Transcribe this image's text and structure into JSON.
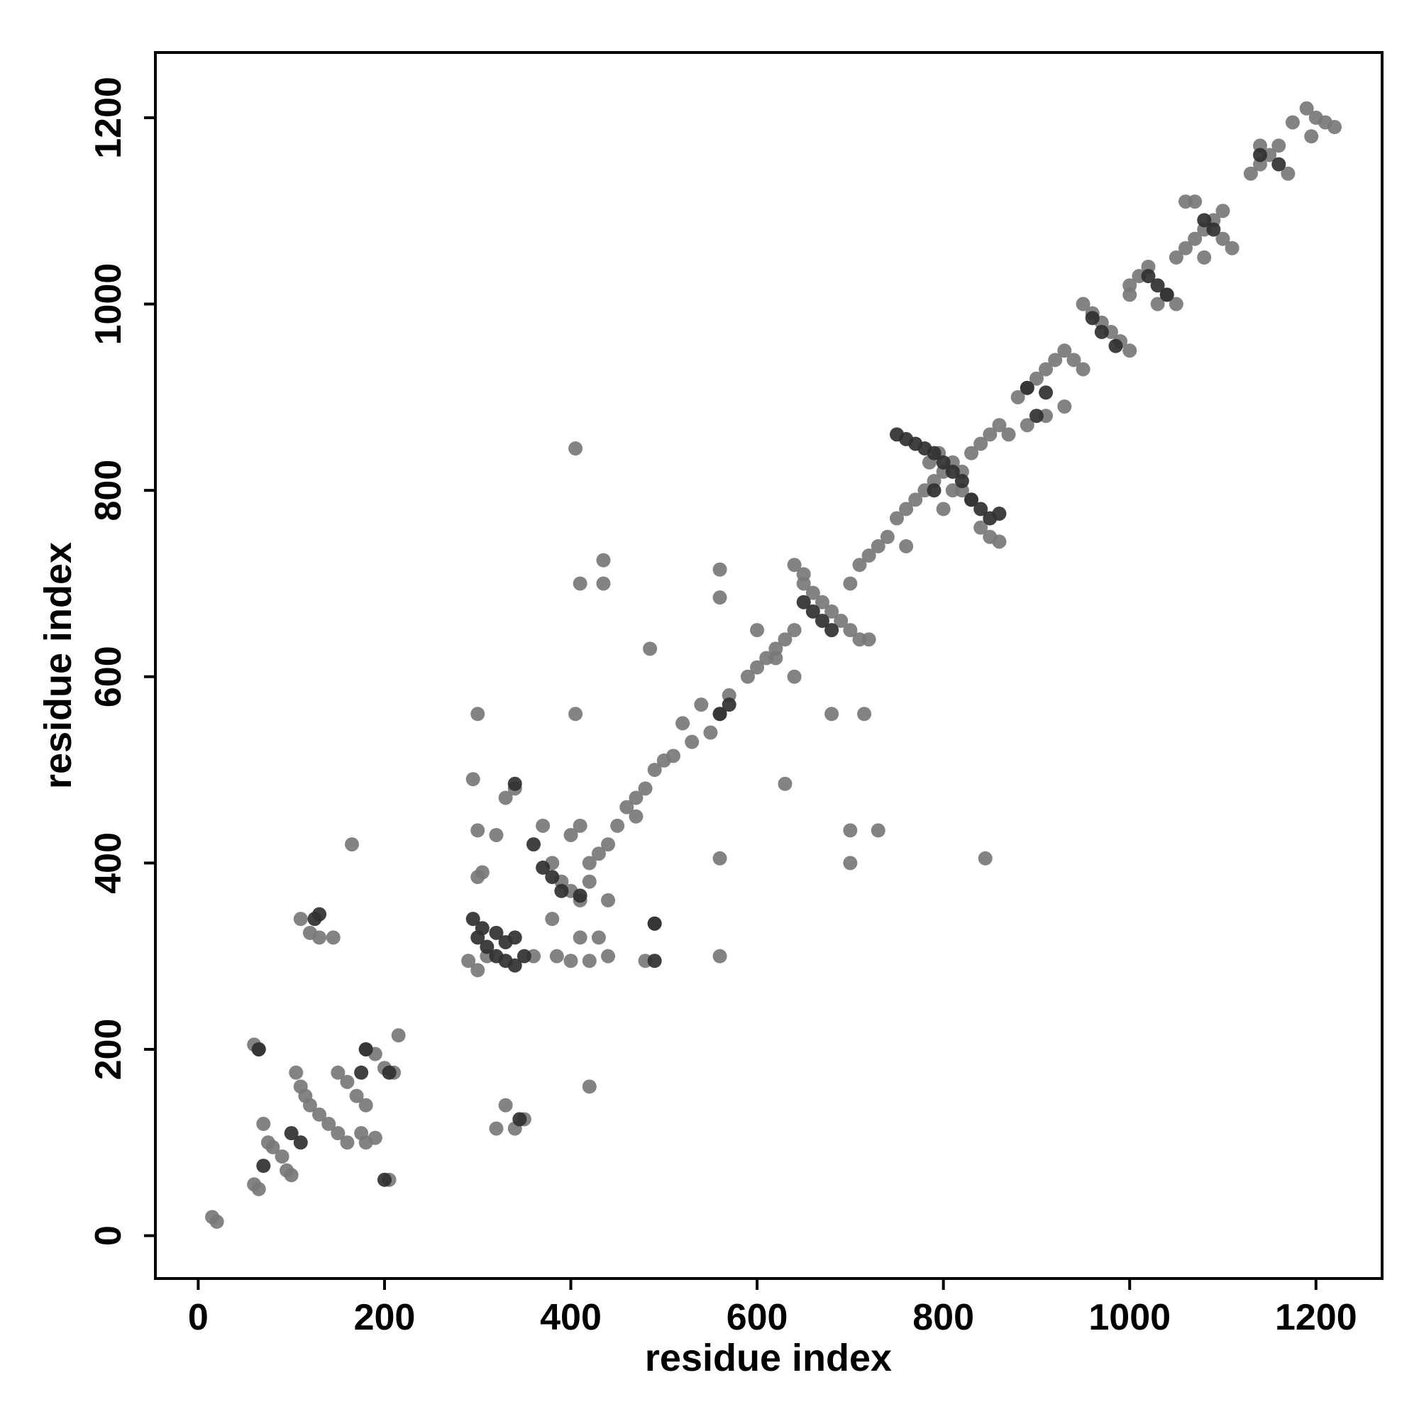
{
  "chart_data": {
    "type": "scatter",
    "x_label": "residue index",
    "y_label": "residue index",
    "xlim": [
      -46,
      1271
    ],
    "ylim": [
      -46,
      1270
    ],
    "xticks": [
      0,
      200,
      400,
      600,
      800,
      1000,
      1200
    ],
    "yticks": [
      0,
      200,
      400,
      600,
      800,
      1000,
      1200
    ],
    "series": [
      {
        "color": "#787878",
        "x": [
          15,
          20,
          60,
          65,
          60,
          65,
          70,
          75,
          80,
          90,
          95,
          100,
          105,
          110,
          115,
          120,
          130,
          140,
          150,
          160,
          110,
          120,
          130,
          145,
          165,
          150,
          160,
          170,
          180,
          175,
          180,
          190,
          200,
          210,
          215,
          205,
          180,
          190,
          290,
          300,
          300,
          295,
          300,
          300,
          305,
          320,
          330,
          320,
          340,
          350,
          310,
          330,
          340,
          360,
          370,
          380,
          390,
          400,
          410,
          420,
          430,
          440,
          400,
          410,
          420,
          440,
          380,
          385,
          400,
          410,
          420,
          430,
          440,
          450,
          460,
          470,
          480,
          470,
          490,
          500,
          510,
          405,
          410,
          435,
          435,
          405,
          485,
          420,
          480,
          490,
          560,
          560,
          520,
          540,
          550,
          530,
          560,
          570,
          590,
          600,
          610,
          620,
          630,
          640,
          600,
          620,
          640,
          630,
          650,
          660,
          670,
          680,
          690,
          700,
          710,
          720,
          640,
          650,
          680,
          700,
          710,
          720,
          730,
          740,
          700,
          700,
          715,
          730,
          560,
          560,
          750,
          760,
          770,
          780,
          790,
          800,
          810,
          820,
          830,
          840,
          850,
          860,
          800,
          810,
          820,
          830,
          840,
          850,
          860,
          870,
          845,
          760,
          785,
          795,
          880,
          890,
          900,
          910,
          920,
          930,
          890,
          910,
          930,
          950,
          960,
          970,
          980,
          990,
          1000,
          940,
          950,
          1000,
          1010,
          1020,
          1030,
          1040,
          1050,
          1000,
          1050,
          1060,
          1070,
          1080,
          1090,
          1100,
          1060,
          1070,
          1080,
          1100,
          1110,
          1130,
          1140,
          1150,
          1160,
          1170,
          1140,
          1175,
          1190,
          1200,
          1210,
          1220,
          1195
        ],
        "y": [
          20,
          15,
          55,
          50,
          205,
          200,
          120,
          100,
          95,
          85,
          70,
          65,
          175,
          160,
          150,
          140,
          130,
          120,
          110,
          100,
          340,
          325,
          320,
          320,
          420,
          175,
          165,
          150,
          140,
          110,
          100,
          105,
          180,
          175,
          215,
          60,
          200,
          195,
          295,
          285,
          560,
          490,
          435,
          385,
          390,
          430,
          140,
          115,
          115,
          125,
          300,
          470,
          480,
          300,
          440,
          400,
          380,
          370,
          360,
          400,
          410,
          420,
          430,
          440,
          380,
          360,
          340,
          300,
          295,
          320,
          295,
          320,
          300,
          440,
          460,
          470,
          480,
          450,
          500,
          510,
          515,
          560,
          700,
          700,
          725,
          845,
          630,
          160,
          295,
          335,
          300,
          405,
          550,
          570,
          540,
          530,
          560,
          580,
          600,
          610,
          620,
          630,
          640,
          650,
          650,
          620,
          600,
          485,
          700,
          690,
          680,
          670,
          660,
          650,
          640,
          640,
          720,
          710,
          560,
          700,
          720,
          730,
          740,
          750,
          400,
          435,
          560,
          435,
          715,
          685,
          770,
          780,
          790,
          800,
          810,
          820,
          830,
          800,
          790,
          760,
          750,
          745,
          780,
          800,
          820,
          840,
          850,
          860,
          870,
          860,
          405,
          740,
          830,
          840,
          900,
          910,
          920,
          930,
          940,
          950,
          870,
          880,
          890,
          1000,
          990,
          980,
          970,
          960,
          950,
          940,
          930,
          1020,
          1030,
          1040,
          1000,
          1010,
          1000,
          1010,
          1050,
          1060,
          1070,
          1080,
          1090,
          1100,
          1110,
          1110,
          1050,
          1070,
          1060,
          1140,
          1150,
          1160,
          1170,
          1140,
          1170,
          1195,
          1210,
          1200,
          1195,
          1190,
          1180
        ]
      },
      {
        "color": "#303030",
        "x": [
          65,
          70,
          100,
          110,
          130,
          125,
          175,
          180,
          200,
          205,
          295,
          300,
          310,
          320,
          330,
          340,
          305,
          320,
          330,
          340,
          345,
          340,
          360,
          370,
          380,
          390,
          410,
          490,
          490,
          350,
          570,
          560,
          650,
          660,
          670,
          680,
          750,
          760,
          770,
          780,
          790,
          800,
          810,
          820,
          830,
          840,
          850,
          860,
          790,
          890,
          900,
          910,
          960,
          970,
          985,
          1020,
          1030,
          1040,
          1080,
          1090,
          1140,
          1160
        ],
        "y": [
          200,
          75,
          110,
          100,
          345,
          340,
          175,
          200,
          60,
          175,
          340,
          320,
          310,
          300,
          295,
          290,
          330,
          325,
          315,
          320,
          125,
          485,
          420,
          395,
          385,
          370,
          365,
          295,
          335,
          300,
          570,
          560,
          680,
          670,
          660,
          650,
          860,
          855,
          850,
          845,
          840,
          830,
          820,
          810,
          790,
          780,
          770,
          775,
          800,
          910,
          880,
          905,
          985,
          970,
          955,
          1030,
          1020,
          1010,
          1090,
          1080,
          1160,
          1150
        ]
      }
    ]
  }
}
